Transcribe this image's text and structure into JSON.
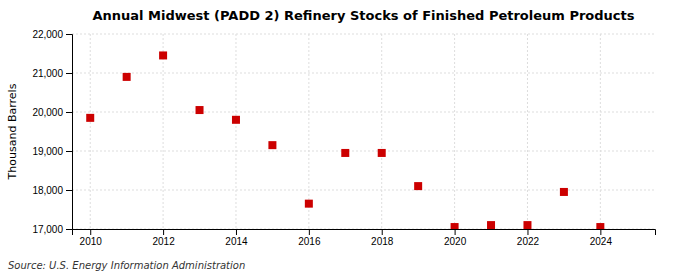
{
  "chart_data": {
    "type": "scatter",
    "title": "Annual Midwest (PADD 2) Refinery Stocks of Finished Petroleum Products",
    "y_label": "Thousand Barrels",
    "annotations": [
      "Source: U.S. Energy Information Administration"
    ],
    "x": [
      2010,
      2011,
      2012,
      2013,
      2014,
      2015,
      2016,
      2017,
      2018,
      2019,
      2020,
      2021,
      2022,
      2023,
      2024
    ],
    "values": [
      19850,
      20900,
      21450,
      20050,
      19800,
      19150,
      17650,
      18950,
      18950,
      18100,
      17050,
      17100,
      17100,
      17950,
      17050
    ],
    "color": "#cc0000",
    "marker": "square",
    "xlim": [
      2009.5,
      2025.5
    ],
    "xticks": [
      2010,
      2012,
      2014,
      2016,
      2018,
      2020,
      2022,
      2024
    ],
    "ylim": [
      17000,
      22000
    ],
    "yticks": [
      {
        "value": 17000,
        "label": "17,000"
      },
      {
        "value": 18000,
        "label": "18,000"
      },
      {
        "value": 19000,
        "label": "19,000"
      },
      {
        "value": 20000,
        "label": "20,000"
      },
      {
        "value": 21000,
        "label": "21,000"
      },
      {
        "value": 22000,
        "label": "22,000"
      }
    ],
    "grid": true
  }
}
